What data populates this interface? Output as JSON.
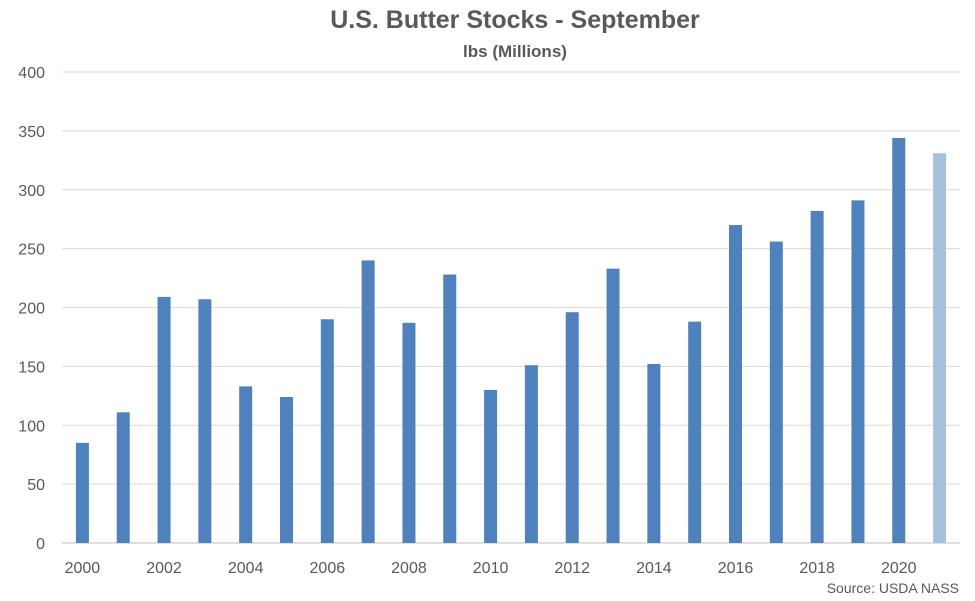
{
  "chart_data": {
    "type": "bar",
    "title": "U.S. Butter Stocks - September",
    "subtitle": "lbs (Millions)",
    "source": "Source: USDA NASS",
    "categories": [
      "2000",
      "2001",
      "2002",
      "2003",
      "2004",
      "2005",
      "2006",
      "2007",
      "2008",
      "2009",
      "2010",
      "2011",
      "2012",
      "2013",
      "2014",
      "2015",
      "2016",
      "2017",
      "2018",
      "2019",
      "2020",
      "2021"
    ],
    "x_tick_labels": [
      "2000",
      "2002",
      "2004",
      "2006",
      "2008",
      "2010",
      "2012",
      "2014",
      "2016",
      "2018",
      "2020"
    ],
    "values": [
      85,
      111,
      209,
      207,
      133,
      124,
      190,
      240,
      187,
      228,
      130,
      151,
      196,
      233,
      152,
      188,
      270,
      256,
      282,
      291,
      344,
      331
    ],
    "ylim": [
      0,
      400
    ],
    "y_ticks": [
      0,
      50,
      100,
      150,
      200,
      250,
      300,
      350,
      400
    ],
    "grid": true,
    "legend": "none",
    "colors": {
      "bar": "#4f81bd",
      "bar_highlight": "#a7c0de",
      "grid": "#d9d9d9",
      "text": "#595959"
    },
    "highlighted_categories": [
      "2021"
    ]
  }
}
